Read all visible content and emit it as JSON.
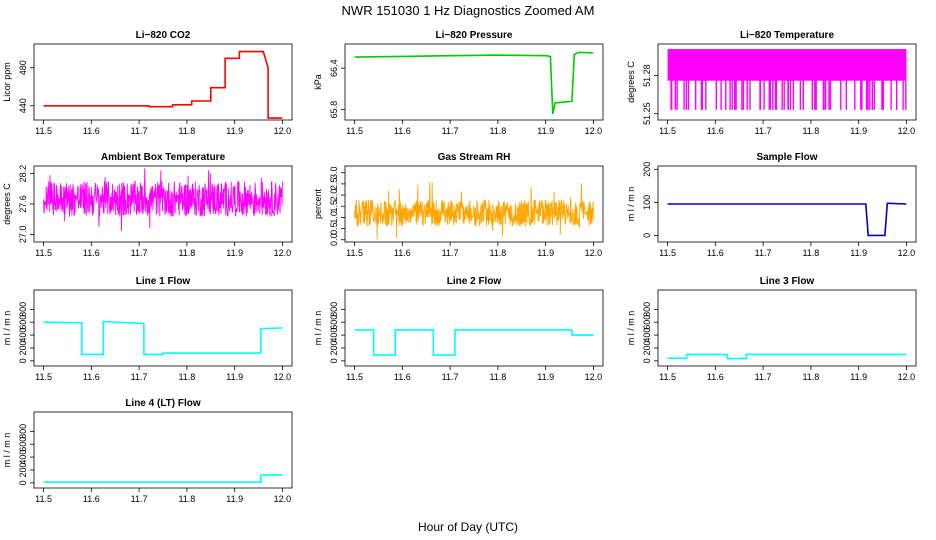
{
  "figure": {
    "title": "NWR  151030  1 Hz Diagnostics Zoomed AM",
    "xlabel": "Hour of Day (UTC)"
  },
  "chart_data": [
    {
      "type": "line",
      "title": "Li−820 CO2",
      "ylabel": "Licor ppm",
      "color": "#ff0000",
      "xlim": [
        11.48,
        12.02
      ],
      "ylim": [
        425,
        505
      ],
      "xticks": [
        "11.5",
        "11.6",
        "11.7",
        "11.8",
        "11.9",
        "12.0"
      ],
      "yticks": [
        "440",
        "480"
      ],
      "x": [
        11.5,
        11.72,
        11.72,
        11.77,
        11.77,
        11.81,
        11.81,
        11.85,
        11.85,
        11.88,
        11.88,
        11.91,
        11.91,
        11.96,
        11.97,
        11.97,
        12.0
      ],
      "y": [
        440,
        440,
        439,
        439,
        441,
        441,
        445,
        445,
        459,
        459,
        490,
        490,
        497,
        497,
        480,
        427,
        427
      ]
    },
    {
      "type": "line",
      "title": "Li−820 Pressure",
      "ylabel": "kPa",
      "color": "#00cc00",
      "xlim": [
        11.48,
        12.02
      ],
      "ylim": [
        65.65,
        66.75
      ],
      "xticks": [
        "11.5",
        "11.6",
        "11.7",
        "11.8",
        "11.9",
        "12.0"
      ],
      "yticks": [
        "65.8",
        "66.4"
      ],
      "x": [
        11.5,
        11.6,
        11.7,
        11.8,
        11.9,
        11.91,
        11.915,
        11.92,
        11.925,
        11.955,
        11.96,
        11.97,
        12.0
      ],
      "y": [
        66.56,
        66.57,
        66.58,
        66.59,
        66.58,
        66.57,
        65.74,
        65.9,
        65.9,
        65.92,
        66.6,
        66.63,
        66.62
      ]
    },
    {
      "type": "line",
      "title": "Li−820 Temperature",
      "ylabel": "degrees C",
      "color": "#ff00ff",
      "xlim": [
        11.48,
        12.02
      ],
      "ylim": [
        51.245,
        51.305
      ],
      "xticks": [
        "11.5",
        "11.6",
        "11.7",
        "11.8",
        "11.9",
        "12.0"
      ],
      "yticks": [
        "51.25",
        "51.28"
      ],
      "range": [
        51.253,
        51.301
      ],
      "mean": 51.276
    },
    {
      "type": "line",
      "title": "Ambient Box Temperature",
      "ylabel": "degrees C",
      "color": "#ff00ff",
      "xlim": [
        11.48,
        12.02
      ],
      "ylim": [
        26.85,
        28.35
      ],
      "xticks": [
        "11.5",
        "11.6",
        "11.7",
        "11.8",
        "11.9",
        "12.0"
      ],
      "yticks": [
        "27.0",
        "27.6",
        "28.2"
      ],
      "mean": 27.7,
      "range": [
        27.35,
        28.05
      ]
    },
    {
      "type": "line",
      "title": "Gas Stream RH",
      "ylabel": "percent",
      "color": "#ffa500",
      "xlim": [
        11.48,
        12.02
      ],
      "ylim": [
        -0.1,
        3.3
      ],
      "xticks": [
        "11.5",
        "11.6",
        "11.7",
        "11.8",
        "11.9",
        "12.0"
      ],
      "yticks": [
        "0.0",
        "0.5",
        "1.0",
        "1.5",
        "2.0",
        "2.5",
        "3.0"
      ],
      "mean": 1.2,
      "range": [
        0.6,
        1.8
      ]
    },
    {
      "type": "line",
      "title": "Sample Flow",
      "ylabel": "m l / m n",
      "color": "#0000cc",
      "xlim": [
        11.48,
        12.02
      ],
      "ylim": [
        -20,
        210
      ],
      "xticks": [
        "11.5",
        "11.6",
        "11.7",
        "11.8",
        "11.9",
        "12.0"
      ],
      "yticks": [
        "0",
        "100",
        "200"
      ],
      "x": [
        11.5,
        11.9,
        11.915,
        11.92,
        11.955,
        11.96,
        12.0
      ],
      "y": [
        95,
        95,
        95,
        0,
        0,
        97,
        95
      ]
    },
    {
      "type": "line",
      "title": "Line 1 Flow",
      "ylabel": "m l / m n",
      "color": "#00ffff",
      "xlim": [
        11.48,
        12.02
      ],
      "ylim": [
        -80,
        1100
      ],
      "xticks": [
        "11.5",
        "11.6",
        "11.7",
        "11.8",
        "11.9",
        "12.0"
      ],
      "yticks": [
        "0",
        "200",
        "400",
        "600",
        "800"
      ],
      "x": [
        11.5,
        11.58,
        11.58,
        11.625,
        11.625,
        11.71,
        11.71,
        11.75,
        11.75,
        11.955,
        11.955,
        12.0
      ],
      "y": [
        600,
        590,
        100,
        100,
        610,
        580,
        100,
        100,
        120,
        120,
        500,
        510
      ]
    },
    {
      "type": "line",
      "title": "Line 2 Flow",
      "ylabel": "m l / m n",
      "color": "#00ffff",
      "xlim": [
        11.48,
        12.02
      ],
      "ylim": [
        -80,
        1100
      ],
      "xticks": [
        "11.5",
        "11.6",
        "11.7",
        "11.8",
        "11.9",
        "12.0"
      ],
      "yticks": [
        "0",
        "200",
        "400",
        "600",
        "800"
      ],
      "x": [
        11.5,
        11.54,
        11.54,
        11.585,
        11.585,
        11.665,
        11.665,
        11.71,
        11.71,
        11.955,
        11.955,
        12.0
      ],
      "y": [
        480,
        480,
        90,
        90,
        480,
        480,
        90,
        90,
        480,
        480,
        400,
        400
      ]
    },
    {
      "type": "line",
      "title": "Line 3 Flow",
      "ylabel": "m l / m n",
      "color": "#00ffff",
      "xlim": [
        11.48,
        12.02
      ],
      "ylim": [
        -80,
        1100
      ],
      "xticks": [
        "11.5",
        "11.6",
        "11.7",
        "11.8",
        "11.9",
        "12.0"
      ],
      "yticks": [
        "0",
        "200",
        "400",
        "600",
        "800"
      ],
      "x": [
        11.5,
        11.54,
        11.54,
        11.625,
        11.625,
        11.665,
        11.665,
        12.0
      ],
      "y": [
        40,
        40,
        100,
        100,
        35,
        35,
        100,
        100
      ]
    },
    {
      "type": "line",
      "title": "Line 4 (LT) Flow",
      "ylabel": "m l / m n",
      "color": "#00ffff",
      "xlim": [
        11.48,
        12.02
      ],
      "ylim": [
        -80,
        1100
      ],
      "xticks": [
        "11.5",
        "11.6",
        "11.7",
        "11.8",
        "11.9",
        "12.0"
      ],
      "yticks": [
        "0",
        "200",
        "400",
        "600",
        "800"
      ],
      "x": [
        11.5,
        11.955,
        11.955,
        12.0
      ],
      "y": [
        10,
        10,
        120,
        125
      ]
    }
  ]
}
